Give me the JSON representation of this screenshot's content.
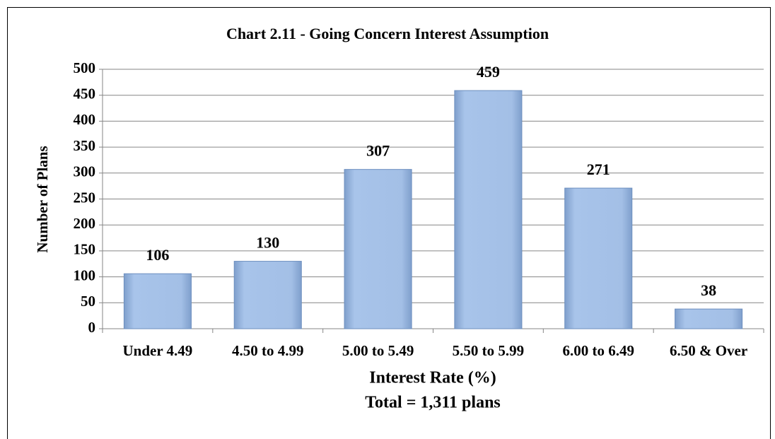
{
  "chart_data": {
    "type": "bar",
    "title": "Chart 2.11 - Going Concern Interest Assumption",
    "x_label": "Interest Rate (%)",
    "note": "Total = 1,311 plans",
    "y_label": "Number of Plans",
    "categories": [
      "Under 4.49",
      "4.50 to 4.99",
      "5.00 to 5.49",
      "5.50 to 5.99",
      "6.00 to 6.49",
      "6.50 & Over"
    ],
    "values": [
      106,
      130,
      307,
      459,
      271,
      38
    ],
    "color": "#9bbbe3",
    "ylim": [
      0,
      500
    ],
    "yticks": [
      0,
      50,
      100,
      150,
      200,
      250,
      300,
      350,
      400,
      450,
      500
    ],
    "grid": true
  }
}
